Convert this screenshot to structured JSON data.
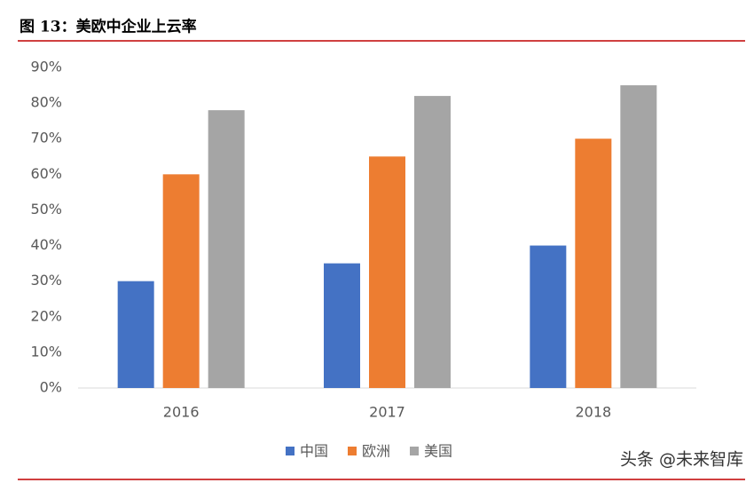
{
  "chart_data": {
    "type": "bar",
    "title": "图 13：美欧中企业上云率",
    "categories": [
      "2016",
      "2017",
      "2018"
    ],
    "series": [
      {
        "name": "中国",
        "color": "#4472c4",
        "values": [
          30,
          35,
          40
        ]
      },
      {
        "name": "欧洲",
        "color": "#ed7d31",
        "values": [
          60,
          65,
          70
        ]
      },
      {
        "name": "美国",
        "color": "#a5a5a5",
        "values": [
          78,
          82,
          85
        ]
      }
    ],
    "ylim": [
      0,
      90
    ],
    "yticks": [
      {
        "value": 0,
        "label": "0%"
      },
      {
        "value": 10,
        "label": "10%"
      },
      {
        "value": 20,
        "label": "20%"
      },
      {
        "value": 30,
        "label": "30%"
      },
      {
        "value": 40,
        "label": "40%"
      },
      {
        "value": 50,
        "label": "50%"
      },
      {
        "value": 60,
        "label": "60%"
      },
      {
        "value": 70,
        "label": "70%"
      },
      {
        "value": 80,
        "label": "80%"
      },
      {
        "value": 90,
        "label": "90%"
      }
    ],
    "grid": false,
    "legend": "bottom",
    "watermark": "头条 @未来智库"
  }
}
